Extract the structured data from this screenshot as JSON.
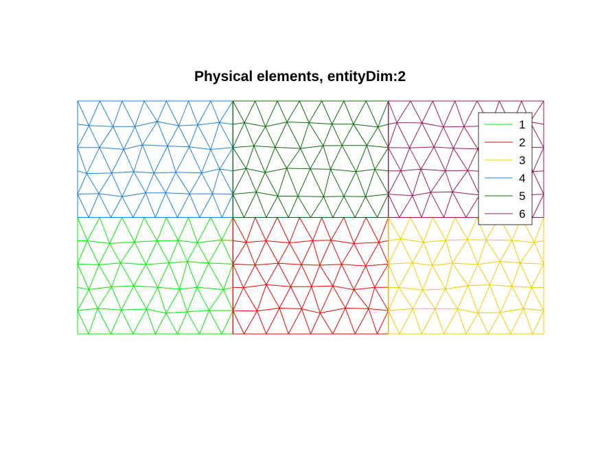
{
  "title": "Physical elements, entityDim:2",
  "regions": [
    {
      "id": "1",
      "color": "#00ee00",
      "label": "1",
      "grid_col": 0,
      "grid_row": 1
    },
    {
      "id": "2",
      "color": "#ee0000",
      "label": "2",
      "grid_col": 1,
      "grid_row": 1
    },
    {
      "id": "3",
      "color": "#eecc00",
      "label": "3",
      "grid_col": 2,
      "grid_row": 1
    },
    {
      "id": "4",
      "color": "#1e7fd8",
      "label": "4",
      "grid_col": 0,
      "grid_row": 0
    },
    {
      "id": "5",
      "color": "#0a6a0a",
      "label": "5",
      "grid_col": 1,
      "grid_row": 0
    },
    {
      "id": "6",
      "color": "#9a1660",
      "label": "6",
      "grid_col": 2,
      "grid_row": 0
    }
  ],
  "legend": {
    "placement": "top-right",
    "entries": [
      "1",
      "2",
      "3",
      "4",
      "5",
      "6"
    ]
  }
}
